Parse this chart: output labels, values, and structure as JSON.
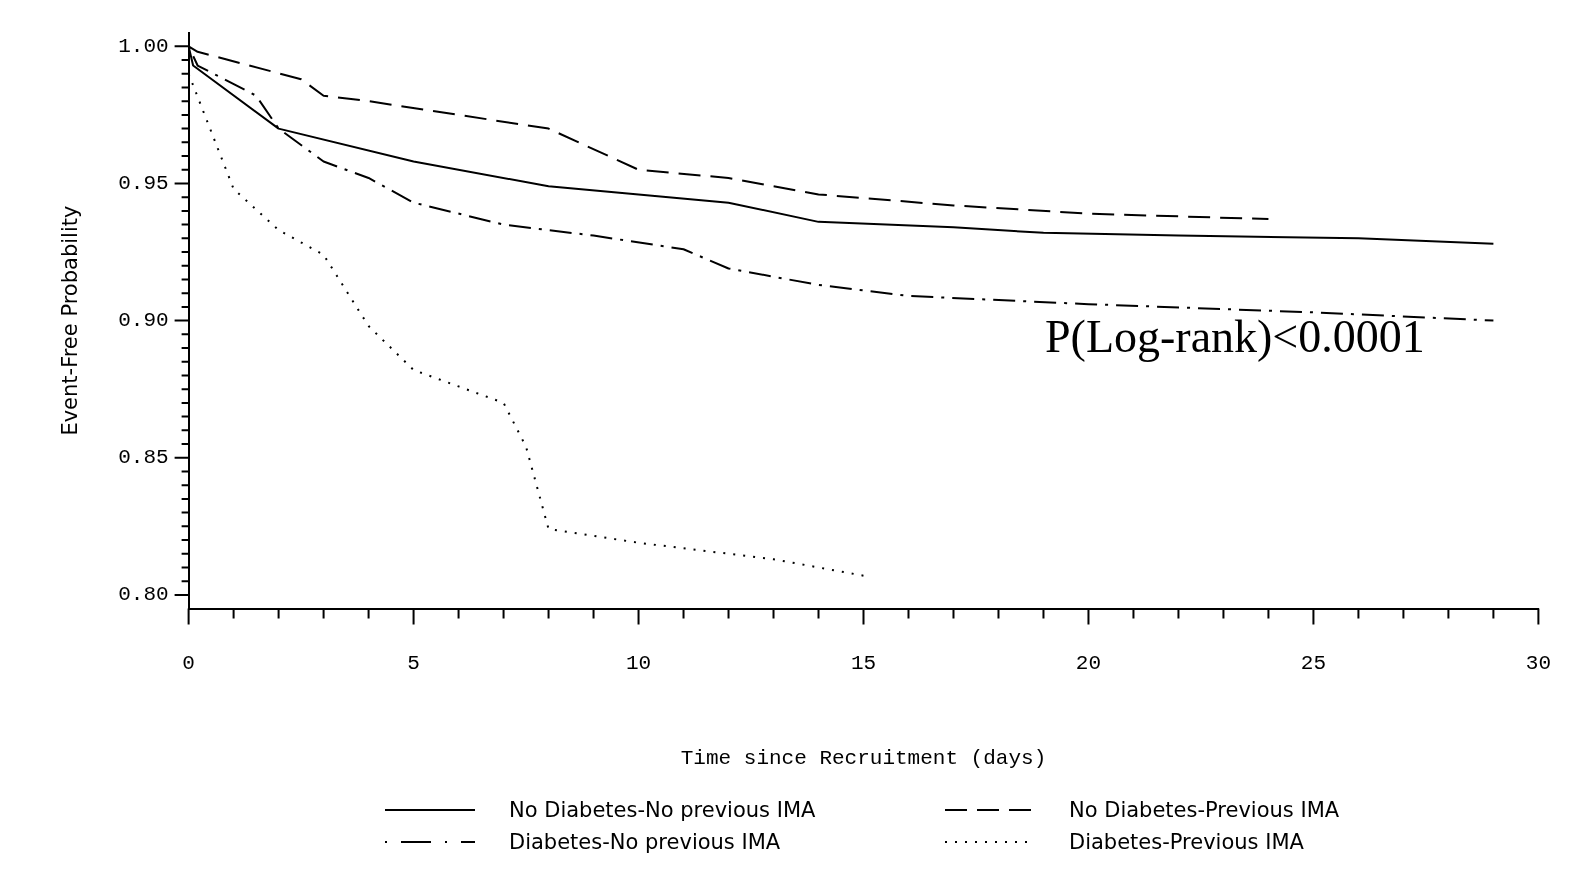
{
  "chart_data": {
    "type": "line",
    "xlabel": "Time since Recruitment (days)",
    "ylabel": "Event-Free Probability",
    "xlim": [
      0,
      30
    ],
    "ylim": [
      0.795,
      1.005
    ],
    "xticks": [
      0,
      {
        "value": 1,
        "label": null
      },
      {
        "value": 2,
        "label": null
      },
      {
        "value": 3,
        "label": null
      },
      {
        "value": 4,
        "label": null
      },
      5,
      {
        "value": 6,
        "label": null
      },
      {
        "value": 7,
        "label": null
      },
      {
        "value": 8,
        "label": null
      },
      {
        "value": 9,
        "label": null
      },
      10,
      {
        "value": 11,
        "label": null
      },
      {
        "value": 12,
        "label": null
      },
      {
        "value": 13,
        "label": null
      },
      {
        "value": 14,
        "label": null
      },
      15,
      {
        "value": 16,
        "label": null
      },
      {
        "value": 17,
        "label": null
      },
      {
        "value": 18,
        "label": null
      },
      {
        "value": 19,
        "label": null
      },
      20,
      {
        "value": 21,
        "label": null
      },
      {
        "value": 22,
        "label": null
      },
      {
        "value": 23,
        "label": null
      },
      {
        "value": 24,
        "label": null
      },
      25,
      {
        "value": 26,
        "label": null
      },
      {
        "value": 27,
        "label": null
      },
      {
        "value": 28,
        "label": null
      },
      {
        "value": 29,
        "label": null
      },
      30
    ],
    "yticks": [
      {
        "value": 0.8,
        "label": "0.80"
      },
      {
        "value": 0.805,
        "label": null
      },
      {
        "value": 0.81,
        "label": null
      },
      {
        "value": 0.815,
        "label": null
      },
      {
        "value": 0.82,
        "label": null
      },
      {
        "value": 0.825,
        "label": null
      },
      {
        "value": 0.83,
        "label": null
      },
      {
        "value": 0.835,
        "label": null
      },
      {
        "value": 0.84,
        "label": null
      },
      {
        "value": 0.845,
        "label": null
      },
      {
        "value": 0.85,
        "label": "0.85"
      },
      {
        "value": 0.855,
        "label": null
      },
      {
        "value": 0.86,
        "label": null
      },
      {
        "value": 0.865,
        "label": null
      },
      {
        "value": 0.87,
        "label": null
      },
      {
        "value": 0.875,
        "label": null
      },
      {
        "value": 0.88,
        "label": null
      },
      {
        "value": 0.885,
        "label": null
      },
      {
        "value": 0.89,
        "label": null
      },
      {
        "value": 0.895,
        "label": null
      },
      {
        "value": 0.9,
        "label": "0.90"
      },
      {
        "value": 0.905,
        "label": null
      },
      {
        "value": 0.91,
        "label": null
      },
      {
        "value": 0.915,
        "label": null
      },
      {
        "value": 0.92,
        "label": null
      },
      {
        "value": 0.925,
        "label": null
      },
      {
        "value": 0.93,
        "label": null
      },
      {
        "value": 0.935,
        "label": null
      },
      {
        "value": 0.94,
        "label": null
      },
      {
        "value": 0.945,
        "label": null
      },
      {
        "value": 0.95,
        "label": "0.95"
      },
      {
        "value": 0.955,
        "label": null
      },
      {
        "value": 0.96,
        "label": null
      },
      {
        "value": 0.965,
        "label": null
      },
      {
        "value": 0.97,
        "label": null
      },
      {
        "value": 0.975,
        "label": null
      },
      {
        "value": 0.98,
        "label": null
      },
      {
        "value": 0.985,
        "label": null
      },
      {
        "value": 0.99,
        "label": null
      },
      {
        "value": 0.995,
        "label": null
      },
      {
        "value": 1.0,
        "label": "1.00"
      }
    ],
    "grid": false,
    "legend": "bottom",
    "marker": "none",
    "annotations": [
      "P(Log-rank)<0.0001"
    ],
    "series": [
      {
        "name": "No Diabetes-No previous IMA",
        "color": "#000000",
        "line_style": "solid",
        "x": [
          0,
          0.1,
          2,
          5,
          8,
          10,
          12,
          14,
          17,
          19,
          22,
          26,
          29
        ],
        "values": [
          1.0,
          0.993,
          0.97,
          0.958,
          0.949,
          0.946,
          0.943,
          0.936,
          0.934,
          0.932,
          0.931,
          0.93,
          0.928
        ]
      },
      {
        "name": "No Diabetes-Previous IMA",
        "color": "#000000",
        "line_style": "dashed",
        "x": [
          0,
          0.2,
          2.5,
          3,
          4,
          6,
          8,
          10,
          12,
          14,
          17,
          20,
          24
        ],
        "values": [
          1.0,
          0.998,
          0.988,
          0.982,
          0.98,
          0.975,
          0.97,
          0.955,
          0.952,
          0.946,
          0.942,
          0.939,
          0.937
        ]
      },
      {
        "name": "Diabetes-No previous IMA",
        "color": "#000000",
        "line_style": "dashdot",
        "x": [
          0,
          0.2,
          1.5,
          2,
          3,
          4,
          5,
          7,
          9,
          11,
          12,
          14,
          16,
          20,
          25,
          29
        ],
        "values": [
          1.0,
          0.993,
          0.982,
          0.97,
          0.958,
          0.952,
          0.943,
          0.935,
          0.931,
          0.926,
          0.919,
          0.913,
          0.909,
          0.906,
          0.903,
          0.9
        ]
      },
      {
        "name": "Diabetes-Previous IMA",
        "color": "#000000",
        "line_style": "dotted",
        "x": [
          0,
          1,
          2,
          3,
          4,
          5,
          6,
          7,
          7.5,
          8,
          10,
          13,
          15
        ],
        "values": [
          0.99,
          0.948,
          0.933,
          0.924,
          0.898,
          0.882,
          0.876,
          0.87,
          0.854,
          0.824,
          0.819,
          0.813,
          0.807
        ]
      }
    ]
  }
}
